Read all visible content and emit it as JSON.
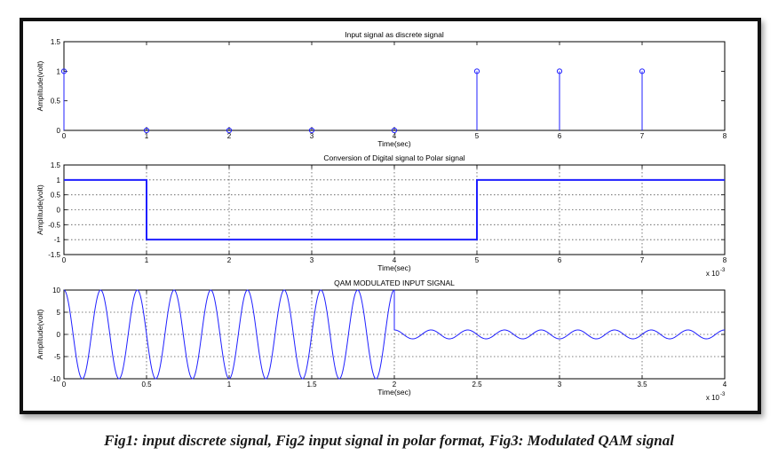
{
  "caption": "Fig1: input discrete signal, Fig2 input signal in polar format, Fig3: Modulated QAM signal",
  "colors": {
    "signal": "#1f1fff",
    "axes": "#000000",
    "grid": "#555555",
    "background": "#ffffff"
  },
  "chart_data": [
    {
      "type": "stem",
      "title": "Input signal as discrete signal",
      "xlabel": "Time(sec)",
      "ylabel": "Amplitude(volt)",
      "xlim": [
        0,
        8
      ],
      "ylim": [
        0,
        1.5
      ],
      "grid": false,
      "x_ticks": [
        "0",
        "1",
        "2",
        "3",
        "4",
        "5",
        "6",
        "7",
        "8"
      ],
      "y_ticks": [
        "0",
        "0.5",
        "1",
        "1.5"
      ],
      "x": [
        0,
        1,
        2,
        3,
        4,
        5,
        6,
        7
      ],
      "y": [
        1,
        0,
        0,
        0,
        0,
        1,
        1,
        1
      ]
    },
    {
      "type": "line",
      "title": "Conversion of Digital signal to Polar signal",
      "xlabel": "Time(sec)",
      "ylabel": "Amplitude(volt)",
      "x_scale_label": "x 10",
      "x_scale_exponent": "-3",
      "xlim": [
        0,
        8
      ],
      "ylim": [
        -1.5,
        1.5
      ],
      "grid": true,
      "x_ticks": [
        "0",
        "1",
        "2",
        "3",
        "4",
        "5",
        "6",
        "7",
        "8"
      ],
      "y_ticks": [
        "-1.5",
        "-1",
        "-0.5",
        "0",
        "0.5",
        "1",
        "1.5"
      ],
      "x": [
        0,
        1,
        1,
        5,
        5,
        8
      ],
      "y": [
        1,
        1,
        -1,
        -1,
        1,
        1
      ]
    },
    {
      "type": "line",
      "title": "QAM MODULATED INPUT SIGNAL",
      "xlabel": "Time(sec)",
      "ylabel": "Amplitude(volt)",
      "x_scale_label": "x 10",
      "x_scale_exponent": "-3",
      "xlim": [
        0,
        4
      ],
      "ylim": [
        -10,
        10
      ],
      "grid": true,
      "x_ticks": [
        "0",
        "0.5",
        "1",
        "1.5",
        "2",
        "2.5",
        "3",
        "3.5",
        "4"
      ],
      "y_ticks": [
        "-10",
        "-5",
        "0",
        "5",
        "10"
      ],
      "segments": [
        {
          "x_start": 0,
          "x_end": 2,
          "offset": 0,
          "amplitude": 10,
          "cycles_per_unit": 4.5
        },
        {
          "x_start": 2,
          "x_end": 4,
          "offset": 0,
          "amplitude": 1,
          "cycles_per_unit": 4.5
        }
      ]
    }
  ]
}
